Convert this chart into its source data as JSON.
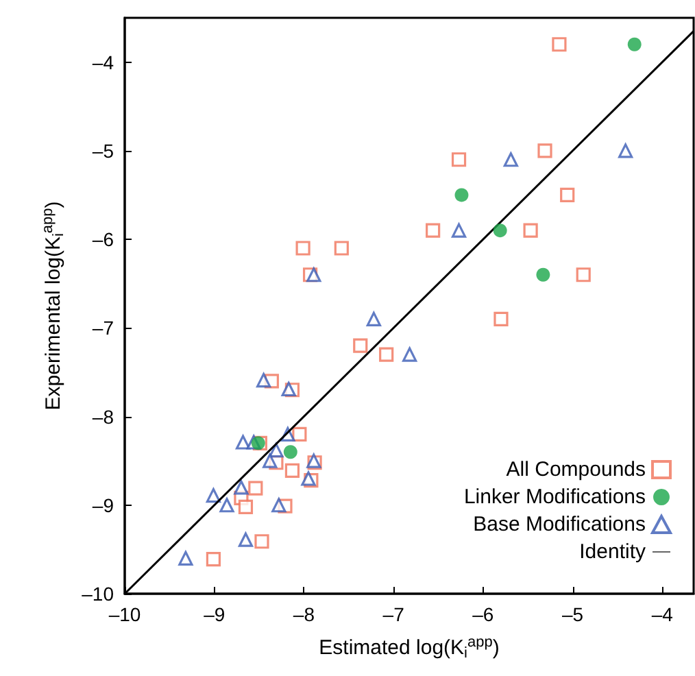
{
  "chart_data": {
    "type": "scatter",
    "xlabel": "Estimated log(K$_{i}$$^{app}$)",
    "ylabel": "Experimental log(K$_{i}$$^{app}$)",
    "xlim": [
      -10,
      -3.65
    ],
    "xticks": [
      {
        "value": -10,
        "label": "–10"
      },
      {
        "value": -9,
        "label": "–9"
      },
      {
        "value": -8,
        "label": "–8"
      },
      {
        "value": -7,
        "label": "–7"
      },
      {
        "value": -6,
        "label": "–6"
      },
      {
        "value": -5,
        "label": "–5"
      },
      {
        "value": -4,
        "label": "–4"
      }
    ],
    "ylim": [
      -10,
      -3.5
    ],
    "yticks": [
      {
        "value": -10,
        "label": "–10"
      },
      {
        "value": -9,
        "label": "–9"
      },
      {
        "value": -8,
        "label": "–8"
      },
      {
        "value": -7,
        "label": "–7"
      },
      {
        "value": -6,
        "label": "–6"
      },
      {
        "value": -5,
        "label": "–5"
      },
      {
        "value": -4,
        "label": "–4"
      }
    ],
    "grid": false,
    "legend": "bottom right",
    "series": [
      {
        "name": "All Compounds",
        "marker": "square",
        "color": "#f0735a",
        "x": [
          -5.15,
          -6.27,
          -5.31,
          -5.06,
          -6.56,
          -5.47,
          -8.01,
          -7.58,
          -7.93,
          -4.88,
          -5.8,
          -7.37,
          -7.08,
          -8.36,
          -8.13,
          -8.05,
          -8.49,
          -8.31,
          -7.88,
          -8.13,
          -7.92,
          -8.54,
          -8.7,
          -8.65,
          -8.21,
          -8.47,
          -9.01
        ],
        "values": [
          -3.8,
          -5.1,
          -5.0,
          -5.5,
          -5.9,
          -5.9,
          -6.1,
          -6.1,
          -6.4,
          -6.4,
          -6.9,
          -7.2,
          -7.3,
          -7.6,
          -7.7,
          -8.2,
          -8.3,
          -8.52,
          -8.52,
          -8.61,
          -8.72,
          -8.81,
          -8.92,
          -9.02,
          -9.01,
          -9.41,
          -9.61
        ]
      },
      {
        "name": "Linker Modifications",
        "marker": "circle",
        "color": "#1aa64a",
        "x": [
          -4.31,
          -6.24,
          -5.81,
          -5.33,
          -8.51,
          -8.15
        ],
        "values": [
          -3.8,
          -5.5,
          -5.9,
          -6.4,
          -8.3,
          -8.4
        ]
      },
      {
        "name": "Base Modifications",
        "marker": "triangle",
        "color": "#3a5bb5",
        "x": [
          -5.69,
          -4.41,
          -6.27,
          -7.89,
          -7.22,
          -6.82,
          -8.45,
          -8.17,
          -8.18,
          -8.68,
          -8.56,
          -8.31,
          -8.38,
          -7.89,
          -7.95,
          -8.7,
          -9.01,
          -8.86,
          -8.28,
          -8.65,
          -9.32
        ],
        "values": [
          -5.1,
          -5.0,
          -5.9,
          -6.4,
          -6.9,
          -7.3,
          -7.59,
          -7.69,
          -8.2,
          -8.29,
          -8.29,
          -8.38,
          -8.5,
          -8.5,
          -8.7,
          -8.8,
          -8.89,
          -9.0,
          -9.0,
          -9.39,
          -9.6
        ]
      },
      {
        "name": "Identity",
        "type": "line",
        "marker": "none",
        "line_style": "solid",
        "color": "#000000",
        "x": [
          -10,
          -3.65
        ],
        "values": [
          -10,
          -3.65
        ]
      }
    ]
  }
}
